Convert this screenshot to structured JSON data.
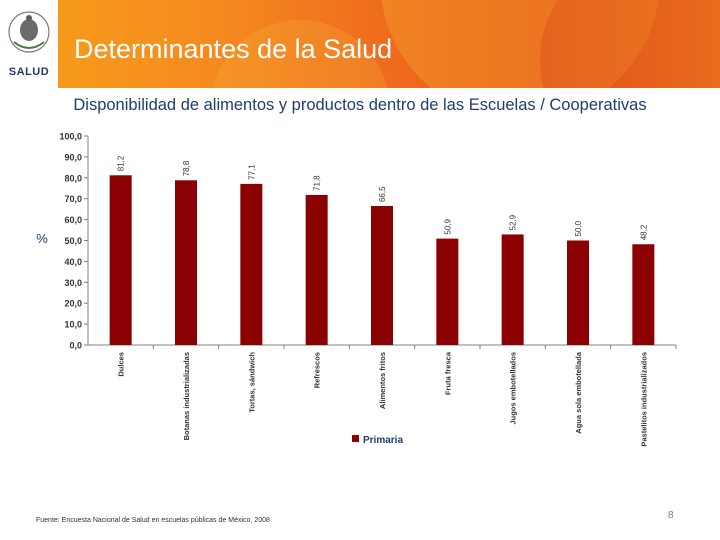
{
  "header": {
    "title": "Determinantes de la Salud",
    "logo_label": "SALUD"
  },
  "colors": {
    "header_start": "#f7a11a",
    "header_end": "#e8561c",
    "bar": "#8b0000",
    "title_text": "#1f3d6e"
  },
  "subtitle": "Disponibilidad de alimentos y productos dentro de las Escuelas / Cooperativas",
  "chart_data": {
    "type": "bar",
    "categories": [
      "Dulces",
      "Botanas industrializadas",
      "Tortas, sándwich",
      "Refrescos",
      "Alimentos fritos",
      "Fruta fresca",
      "Jugos embotellados",
      "Agua sola embotellada",
      "Pastelitos industrializados"
    ],
    "series": [
      {
        "name": "Primaria",
        "values": [
          81.2,
          78.8,
          77.1,
          71.8,
          66.5,
          50.9,
          52.9,
          50.0,
          48.2
        ],
        "labels": [
          "81,2",
          "78,8",
          "77,1",
          "71,8",
          "66,5",
          "50,9",
          "52,9",
          "50,0",
          "48,2"
        ]
      }
    ],
    "ylabel": "%",
    "ylim": [
      0,
      100
    ],
    "yticks": [
      "0,0",
      "10,0",
      "20,0",
      "30,0",
      "40,0",
      "50,0",
      "60,0",
      "70,0",
      "80,0",
      "90,0",
      "100,0"
    ],
    "grid": false,
    "legend": "bottom"
  },
  "footer": {
    "source": "Fuente: Encuesta Nacional de Salud en escuelas públicas de México, 2008",
    "page_number": "8"
  }
}
